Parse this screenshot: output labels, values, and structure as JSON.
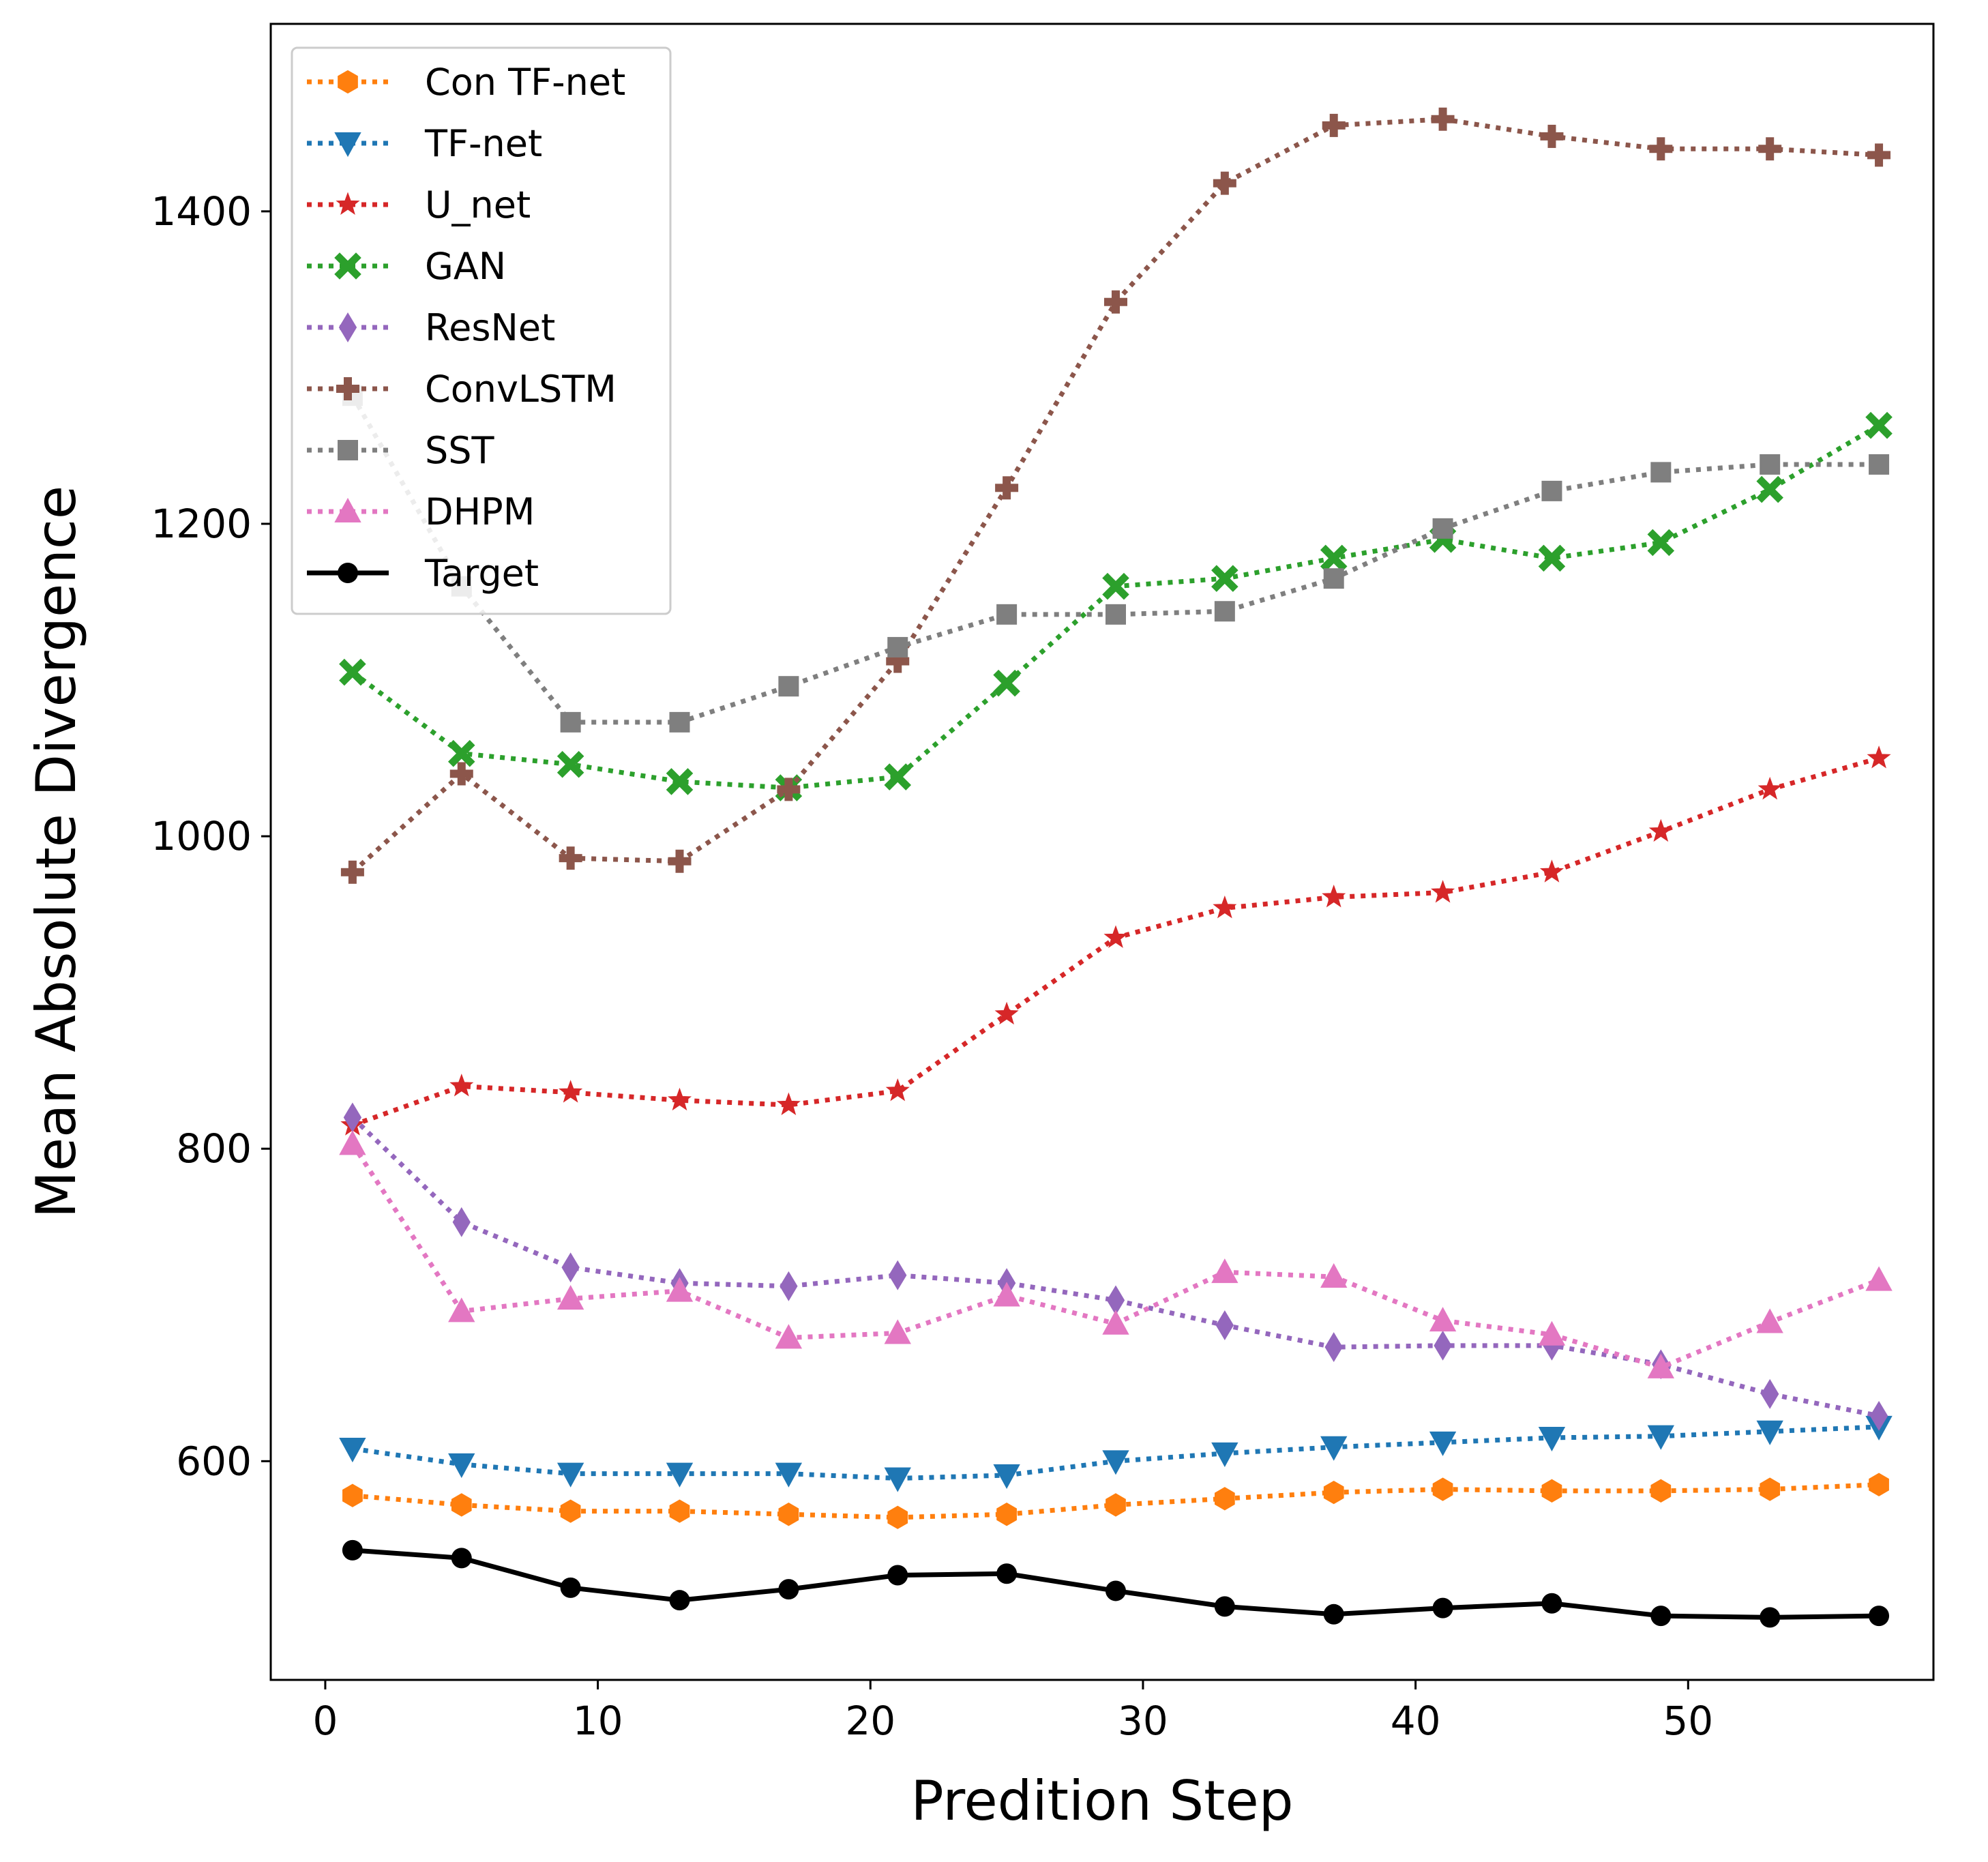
{
  "chart_data": {
    "type": "line",
    "title": "",
    "xlabel": "Predition Step",
    "ylabel": "Mean Absolute Divergence",
    "xlim": [
      -2,
      59
    ],
    "ylim": [
      460,
      1520
    ],
    "xticks": [
      0,
      10,
      20,
      30,
      40,
      50
    ],
    "yticks": [
      600,
      800,
      1000,
      1200,
      1400
    ],
    "grid": false,
    "legend_position": "top-left",
    "x": [
      1,
      5,
      9,
      13,
      17,
      21,
      25,
      29,
      33,
      37,
      41,
      45,
      49,
      53,
      57
    ],
    "series": [
      {
        "name": "Con TF-net",
        "color": "#ff7f0e",
        "line": "dotted",
        "marker": "hexagon",
        "values": [
          578,
          572,
          568,
          568,
          566,
          564,
          566,
          572,
          576,
          580,
          582,
          581,
          581,
          582,
          585
        ]
      },
      {
        "name": "TF-net",
        "color": "#1f77b4",
        "line": "dotted",
        "marker": "triangle-down",
        "values": [
          608,
          598,
          592,
          592,
          592,
          589,
          591,
          600,
          605,
          609,
          612,
          615,
          616,
          619,
          622
        ]
      },
      {
        "name": "U_net",
        "color": "#d62728",
        "line": "dotted",
        "marker": "star",
        "values": [
          815,
          840,
          836,
          831,
          828,
          837,
          886,
          935,
          954,
          961,
          964,
          977,
          1003,
          1030,
          1050
        ]
      },
      {
        "name": "GAN",
        "color": "#2ca02c",
        "line": "dotted",
        "marker": "x-filled",
        "values": [
          1105,
          1053,
          1046,
          1035,
          1031,
          1038,
          1098,
          1160,
          1165,
          1178,
          1190,
          1178,
          1188,
          1222,
          1263
        ]
      },
      {
        "name": "ResNet",
        "color": "#9467bd",
        "line": "dotted",
        "marker": "thin-diamond",
        "values": [
          820,
          753,
          724,
          714,
          712,
          719,
          714,
          703,
          687,
          673,
          674,
          674,
          662,
          643,
          629
        ]
      },
      {
        "name": "ConvLSTM",
        "color": "#8c564b",
        "line": "dotted",
        "marker": "plus-filled",
        "values": [
          977,
          1040,
          986,
          984,
          1030,
          1112,
          1223,
          1342,
          1418,
          1455,
          1459,
          1448,
          1440,
          1440,
          1436
        ]
      },
      {
        "name": "SST",
        "color": "#7f7f7f",
        "line": "dotted",
        "marker": "square",
        "values": [
          1282,
          1160,
          1073,
          1073,
          1096,
          1121,
          1142,
          1142,
          1144,
          1165,
          1197,
          1221,
          1233,
          1238,
          1238
        ]
      },
      {
        "name": "DHPM",
        "color": "#e377c2",
        "line": "dotted",
        "marker": "triangle-up",
        "values": [
          803,
          696,
          704,
          709,
          679,
          682,
          706,
          688,
          721,
          718,
          690,
          681,
          660,
          689,
          716
        ]
      },
      {
        "name": "Target",
        "color": "#000000",
        "line": "solid",
        "marker": "circle",
        "values": [
          543,
          538,
          519,
          511,
          518,
          527,
          528,
          517,
          507,
          502,
          506,
          509,
          501,
          500,
          501
        ]
      }
    ]
  }
}
